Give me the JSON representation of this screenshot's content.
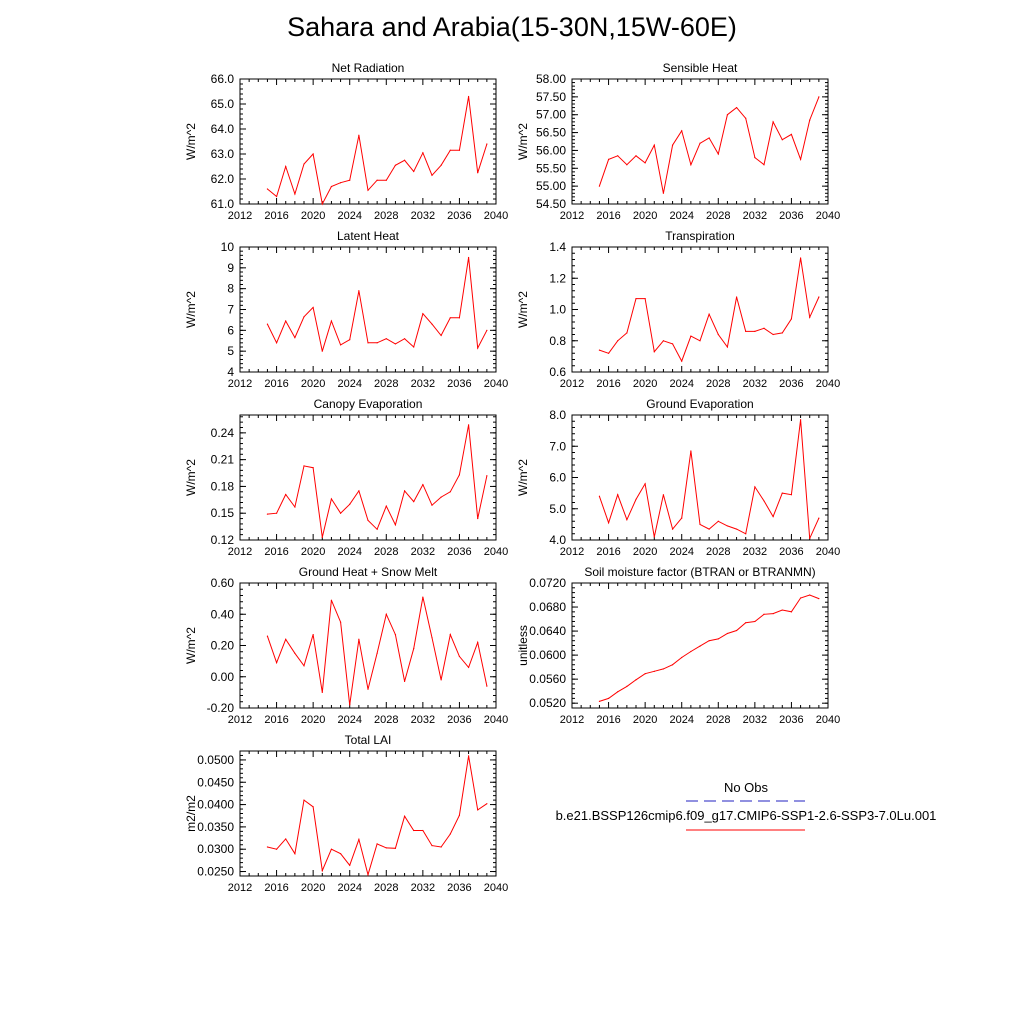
{
  "page_title": "Sahara and Arabia(15-30N,15W-60E)",
  "legend": {
    "obs_label": "No Obs",
    "case_label": "b.e21.BSSP126cmip6.f09_g17.CMIP6-SSP1-2.6-SSP3-7.0Lu.001",
    "obs_color": "#2020c0",
    "case_color": "#ff0000"
  },
  "chart_data": [
    {
      "type": "line",
      "title": "Net Radiation",
      "ylabel": "W/m^2",
      "xlim": [
        2012,
        2040
      ],
      "ylim": [
        61.0,
        66.0
      ],
      "xticks": [
        2012,
        2016,
        2020,
        2024,
        2028,
        2032,
        2036,
        2040
      ],
      "yticks": [
        "61.0",
        "62.0",
        "63.0",
        "64.0",
        "65.0",
        "66.0"
      ],
      "series": [
        {
          "color": "#ff0000",
          "x": [
            2015,
            2016,
            2017,
            2018,
            2019,
            2020,
            2021,
            2022,
            2023,
            2024,
            2025,
            2026,
            2027,
            2028,
            2029,
            2030,
            2031,
            2032,
            2033,
            2034,
            2035,
            2036,
            2037,
            2038,
            2039
          ],
          "values": [
            61.6,
            61.3,
            62.5,
            61.4,
            62.6,
            63.0,
            61.0,
            61.7,
            61.85,
            61.95,
            63.75,
            61.55,
            61.95,
            61.95,
            62.55,
            62.75,
            62.3,
            63.05,
            62.15,
            62.55,
            63.15,
            63.15,
            65.3,
            62.25,
            63.4
          ]
        }
      ]
    },
    {
      "type": "line",
      "title": "Sensible Heat",
      "ylabel": "W/m^2",
      "xlim": [
        2012,
        2040
      ],
      "ylim": [
        54.5,
        58.0
      ],
      "xticks": [
        2012,
        2016,
        2020,
        2024,
        2028,
        2032,
        2036,
        2040
      ],
      "yticks": [
        "54.50",
        "55.00",
        "55.50",
        "56.00",
        "56.50",
        "57.00",
        "57.50",
        "58.00"
      ],
      "series": [
        {
          "color": "#ff0000",
          "x": [
            2015,
            2016,
            2017,
            2018,
            2019,
            2020,
            2021,
            2022,
            2023,
            2024,
            2025,
            2026,
            2027,
            2028,
            2029,
            2030,
            2031,
            2032,
            2033,
            2034,
            2035,
            2036,
            2037,
            2038,
            2039
          ],
          "values": [
            55.0,
            55.75,
            55.85,
            55.6,
            55.85,
            55.65,
            56.15,
            54.8,
            56.15,
            56.55,
            55.6,
            56.2,
            56.35,
            55.9,
            57.0,
            57.2,
            56.9,
            55.8,
            55.6,
            56.8,
            56.3,
            56.45,
            55.75,
            56.85,
            57.5
          ]
        }
      ]
    },
    {
      "type": "line",
      "title": "Latent Heat",
      "ylabel": "W/m^2",
      "xlim": [
        2012,
        2040
      ],
      "ylim": [
        4,
        10
      ],
      "xticks": [
        2012,
        2016,
        2020,
        2024,
        2028,
        2032,
        2036,
        2040
      ],
      "yticks": [
        "4",
        "5",
        "6",
        "7",
        "8",
        "9",
        "10"
      ],
      "series": [
        {
          "color": "#ff0000",
          "x": [
            2015,
            2016,
            2017,
            2018,
            2019,
            2020,
            2021,
            2022,
            2023,
            2024,
            2025,
            2026,
            2027,
            2028,
            2029,
            2030,
            2031,
            2032,
            2033,
            2034,
            2035,
            2036,
            2037,
            2038,
            2039
          ],
          "values": [
            6.3,
            5.4,
            6.45,
            5.65,
            6.65,
            7.1,
            5.0,
            6.45,
            5.3,
            5.55,
            7.9,
            5.4,
            5.4,
            5.6,
            5.35,
            5.6,
            5.2,
            6.8,
            6.3,
            5.75,
            6.6,
            6.6,
            9.5,
            5.15,
            6.0
          ]
        }
      ]
    },
    {
      "type": "line",
      "title": "Transpiration",
      "ylabel": "W/m^2",
      "xlim": [
        2012,
        2040
      ],
      "ylim": [
        0.6,
        1.4
      ],
      "xticks": [
        2012,
        2016,
        2020,
        2024,
        2028,
        2032,
        2036,
        2040
      ],
      "yticks": [
        "0.6",
        "0.8",
        "1.0",
        "1.2",
        "1.4"
      ],
      "series": [
        {
          "color": "#ff0000",
          "x": [
            2015,
            2016,
            2017,
            2018,
            2019,
            2020,
            2021,
            2022,
            2023,
            2024,
            2025,
            2026,
            2027,
            2028,
            2029,
            2030,
            2031,
            2032,
            2033,
            2034,
            2035,
            2036,
            2037,
            2038,
            2039
          ],
          "values": [
            0.74,
            0.72,
            0.8,
            0.85,
            1.07,
            1.07,
            0.73,
            0.8,
            0.78,
            0.67,
            0.83,
            0.8,
            0.97,
            0.84,
            0.76,
            1.08,
            0.86,
            0.86,
            0.88,
            0.84,
            0.85,
            0.94,
            1.33,
            0.95,
            1.08
          ]
        }
      ]
    },
    {
      "type": "line",
      "title": "Canopy Evaporation",
      "ylabel": "W/m^2",
      "xlim": [
        2012,
        2040
      ],
      "ylim": [
        0.12,
        0.26
      ],
      "xticks": [
        2012,
        2016,
        2020,
        2024,
        2028,
        2032,
        2036,
        2040
      ],
      "yticks": [
        "0.12",
        "0.15",
        "0.18",
        "0.21",
        "0.24"
      ],
      "series": [
        {
          "color": "#ff0000",
          "x": [
            2015,
            2016,
            2017,
            2018,
            2019,
            2020,
            2021,
            2022,
            2023,
            2024,
            2025,
            2026,
            2027,
            2028,
            2029,
            2030,
            2031,
            2032,
            2033,
            2034,
            2035,
            2036,
            2037,
            2038,
            2039
          ],
          "values": [
            0.149,
            0.15,
            0.171,
            0.157,
            0.203,
            0.201,
            0.123,
            0.166,
            0.15,
            0.16,
            0.175,
            0.142,
            0.132,
            0.158,
            0.137,
            0.175,
            0.163,
            0.182,
            0.159,
            0.168,
            0.174,
            0.193,
            0.249,
            0.144,
            0.192
          ]
        }
      ]
    },
    {
      "type": "line",
      "title": "Ground Evaporation",
      "ylabel": "W/m^2",
      "xlim": [
        2012,
        2040
      ],
      "ylim": [
        4.0,
        8.0
      ],
      "xticks": [
        2012,
        2016,
        2020,
        2024,
        2028,
        2032,
        2036,
        2040
      ],
      "yticks": [
        "4.0",
        "5.0",
        "6.0",
        "7.0",
        "8.0"
      ],
      "series": [
        {
          "color": "#ff0000",
          "x": [
            2015,
            2016,
            2017,
            2018,
            2019,
            2020,
            2021,
            2022,
            2023,
            2024,
            2025,
            2026,
            2027,
            2028,
            2029,
            2030,
            2031,
            2032,
            2033,
            2034,
            2035,
            2036,
            2037,
            2038,
            2039
          ],
          "values": [
            5.4,
            4.55,
            5.45,
            4.65,
            5.3,
            5.8,
            4.1,
            5.45,
            4.35,
            4.7,
            6.85,
            4.5,
            4.35,
            4.6,
            4.45,
            4.35,
            4.2,
            5.7,
            5.25,
            4.75,
            5.5,
            5.45,
            7.85,
            4.05,
            4.7
          ]
        }
      ]
    },
    {
      "type": "line",
      "title": "Ground Heat + Snow Melt",
      "ylabel": "W/m^2",
      "xlim": [
        2012,
        2040
      ],
      "ylim": [
        -0.2,
        0.6
      ],
      "xticks": [
        2012,
        2016,
        2020,
        2024,
        2028,
        2032,
        2036,
        2040
      ],
      "yticks": [
        "-0.20",
        "0.00",
        "0.20",
        "0.40",
        "0.60"
      ],
      "series": [
        {
          "color": "#ff0000",
          "x": [
            2015,
            2016,
            2017,
            2018,
            2019,
            2020,
            2021,
            2022,
            2023,
            2024,
            2025,
            2026,
            2027,
            2028,
            2029,
            2030,
            2031,
            2032,
            2033,
            2034,
            2035,
            2036,
            2037,
            2038,
            2039
          ],
          "values": [
            0.26,
            0.09,
            0.24,
            0.15,
            0.07,
            0.27,
            -0.1,
            0.49,
            0.35,
            -0.18,
            0.24,
            -0.08,
            0.15,
            0.4,
            0.27,
            -0.03,
            0.18,
            0.51,
            0.25,
            -0.02,
            0.27,
            0.13,
            0.06,
            0.22,
            -0.06
          ]
        }
      ]
    },
    {
      "type": "line",
      "title": "Soil moisture factor (BTRAN or BTRANMN)",
      "ylabel": "unitless",
      "xlim": [
        2012,
        2040
      ],
      "ylim": [
        0.0512,
        0.072
      ],
      "xticks": [
        2012,
        2016,
        2020,
        2024,
        2028,
        2032,
        2036,
        2040
      ],
      "yticks": [
        "0.0520",
        "0.0560",
        "0.0600",
        "0.0640",
        "0.0680",
        "0.0720"
      ],
      "series": [
        {
          "color": "#ff0000",
          "x": [
            2015,
            2016,
            2017,
            2018,
            2019,
            2020,
            2021,
            2022,
            2023,
            2024,
            2025,
            2026,
            2027,
            2028,
            2029,
            2030,
            2031,
            2032,
            2033,
            2034,
            2035,
            2036,
            2037,
            2038,
            2039
          ],
          "values": [
            0.0523,
            0.0528,
            0.0539,
            0.0548,
            0.0559,
            0.0569,
            0.0573,
            0.0577,
            0.0584,
            0.0596,
            0.0606,
            0.0615,
            0.0624,
            0.0627,
            0.0636,
            0.0641,
            0.0654,
            0.0656,
            0.0668,
            0.0669,
            0.0675,
            0.0672,
            0.0695,
            0.07,
            0.0694
          ]
        }
      ]
    },
    {
      "type": "line",
      "title": "Total LAI",
      "ylabel": "m2/m2",
      "xlim": [
        2012,
        2040
      ],
      "ylim": [
        0.024,
        0.052
      ],
      "xticks": [
        2012,
        2016,
        2020,
        2024,
        2028,
        2032,
        2036,
        2040
      ],
      "yticks": [
        "0.0250",
        "0.0300",
        "0.0350",
        "0.0400",
        "0.0450",
        "0.0500"
      ],
      "series": [
        {
          "color": "#ff0000",
          "x": [
            2015,
            2016,
            2017,
            2018,
            2019,
            2020,
            2021,
            2022,
            2023,
            2024,
            2025,
            2026,
            2027,
            2028,
            2029,
            2030,
            2031,
            2032,
            2033,
            2034,
            2035,
            2036,
            2037,
            2038,
            2039
          ],
          "values": [
            0.0305,
            0.03,
            0.0323,
            0.029,
            0.041,
            0.0395,
            0.0252,
            0.03,
            0.029,
            0.0264,
            0.0322,
            0.0243,
            0.0312,
            0.0303,
            0.0302,
            0.0374,
            0.0342,
            0.0342,
            0.0308,
            0.0305,
            0.0334,
            0.0376,
            0.0509,
            0.0388,
            0.0402
          ]
        }
      ]
    }
  ]
}
